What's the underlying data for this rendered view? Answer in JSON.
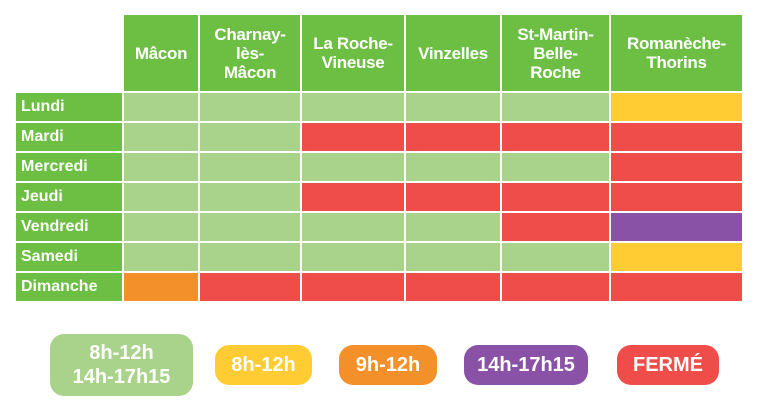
{
  "chart_data": {
    "type": "table",
    "columns": [
      "Mâcon",
      "Charnay-\nlès-\nMâcon",
      "La Roche-\nVineuse",
      "Vinzelles",
      "St-Martin-\nBelle-\nRoche",
      "Romanèche-\nThorins"
    ],
    "rows": [
      "Lundi",
      "Mardi",
      "Mercredi",
      "Jeudi",
      "Vendredi",
      "Samedi",
      "Dimanche"
    ],
    "status_colors": {
      "green": "#a9d38a",
      "yellow": "#ffcc33",
      "orange": "#f4902a",
      "purple": "#8a52a6",
      "red": "#ee4d4a"
    },
    "cells": [
      [
        "green",
        "green",
        "green",
        "green",
        "green",
        "yellow"
      ],
      [
        "green",
        "green",
        "red",
        "red",
        "red",
        "red"
      ],
      [
        "green",
        "green",
        "green",
        "green",
        "green",
        "red"
      ],
      [
        "green",
        "green",
        "red",
        "red",
        "red",
        "red"
      ],
      [
        "green",
        "green",
        "green",
        "green",
        "red",
        "purple"
      ],
      [
        "green",
        "green",
        "green",
        "green",
        "green",
        "yellow"
      ],
      [
        "orange",
        "red",
        "red",
        "red",
        "red",
        "red"
      ]
    ],
    "legend": [
      {
        "key": "green",
        "label": "8h-12h\n14h-17h15"
      },
      {
        "key": "yellow",
        "label": "8h-12h"
      },
      {
        "key": "orange",
        "label": "9h-12h"
      },
      {
        "key": "purple",
        "label": "14h-17h15"
      },
      {
        "key": "red",
        "label": "FERMÉ"
      }
    ]
  }
}
